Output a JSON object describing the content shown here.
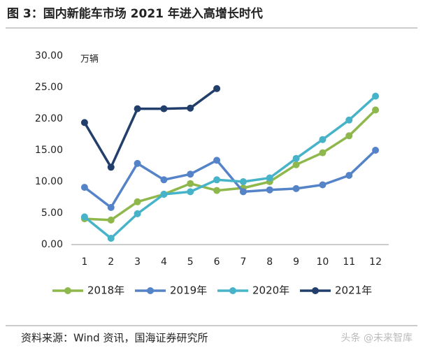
{
  "chart_data": {
    "type": "line",
    "title": "图 3：国内新能车市场 2021 年进入高增长时代",
    "ylabel": "万辆",
    "categories": [
      "1",
      "2",
      "3",
      "4",
      "5",
      "6",
      "7",
      "8",
      "9",
      "10",
      "11",
      "12"
    ],
    "series": [
      {
        "name": "2018年",
        "color": "#8fb84c",
        "values": [
          4.1,
          3.9,
          6.8,
          8.0,
          9.7,
          8.6,
          9.0,
          10.0,
          12.7,
          14.6,
          17.3,
          21.4
        ]
      },
      {
        "name": "2019年",
        "color": "#5583c8",
        "values": [
          9.1,
          5.9,
          12.9,
          10.3,
          11.2,
          13.4,
          8.4,
          8.7,
          8.9,
          9.5,
          11.0,
          15.0
        ]
      },
      {
        "name": "2020年",
        "color": "#47b3c9",
        "values": [
          4.4,
          1.0,
          4.9,
          8.0,
          8.4,
          10.3,
          10.0,
          10.6,
          13.7,
          16.7,
          19.8,
          23.6
        ]
      },
      {
        "name": "2021年",
        "color": "#223f6c",
        "values": [
          19.4,
          12.3,
          21.6,
          21.6,
          21.7,
          24.8,
          null,
          null,
          null,
          null,
          null,
          null
        ]
      }
    ],
    "ylim": [
      0,
      30
    ],
    "yticks": [
      {
        "value": 0,
        "label": "0.00"
      },
      {
        "value": 5,
        "label": "5.00"
      },
      {
        "value": 10,
        "label": "10.00"
      },
      {
        "value": 15,
        "label": "15.00"
      },
      {
        "value": 20,
        "label": "20.00"
      },
      {
        "value": 25,
        "label": "25.00"
      },
      {
        "value": 30,
        "label": "30.00"
      }
    ],
    "grid": false,
    "legend": "bottom",
    "source": "资料来源：Wind 资讯，国海证券研究所",
    "watermark": "头条 @未来智库"
  }
}
